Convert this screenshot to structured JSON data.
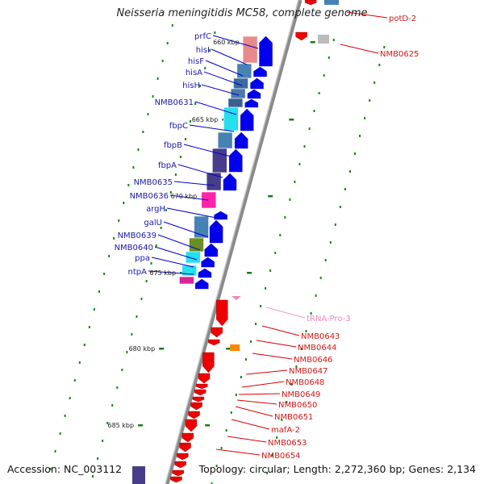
{
  "header": {
    "title": "Neisseria meningitidis MC58, complete genome"
  },
  "footer": {
    "accession": "Accession: NC_003112",
    "topology": "Topology: circular; Length: 2,272,360 bp; Genes: 2,134"
  },
  "colors": {
    "backbone": "#8c8c8c",
    "forward_genes": "#0000ee",
    "reverse_genes": "#ee0000",
    "forward_labels": "#1a1aa8",
    "reverse_labels": "#d01818",
    "trna": "#ee88bb",
    "tick_marks": "#118811"
  },
  "ruler": {
    "ticks": [
      {
        "label": "660 kbp"
      },
      {
        "label": "665 kbp"
      },
      {
        "label": "670 kbp"
      },
      {
        "label": "675 kbp"
      },
      {
        "label": "680 kbp"
      },
      {
        "label": "685 kbp"
      }
    ]
  },
  "genes_forward": [
    {
      "name": "prfC"
    },
    {
      "name": "hisI"
    },
    {
      "name": "hisF"
    },
    {
      "name": "hisA"
    },
    {
      "name": "hisH"
    },
    {
      "name": "NMB0631"
    },
    {
      "name": "fbpC"
    },
    {
      "name": "fbpB"
    },
    {
      "name": "fbpA"
    },
    {
      "name": "NMB0635"
    },
    {
      "name": "NMB0636"
    },
    {
      "name": "argH"
    },
    {
      "name": "galU"
    },
    {
      "name": "NMB0639"
    },
    {
      "name": "NMB0640"
    },
    {
      "name": "ppa"
    },
    {
      "name": "ntpA"
    }
  ],
  "genes_reverse": [
    {
      "name": "potD-2"
    },
    {
      "name": "NMB0625"
    },
    {
      "name": "tRNA-Pro-3"
    },
    {
      "name": "NMB0643"
    },
    {
      "name": "NMB0644"
    },
    {
      "name": "NMB0646"
    },
    {
      "name": "NMB0647"
    },
    {
      "name": "NMB0648"
    },
    {
      "name": "NMB0649"
    },
    {
      "name": "NMB0650"
    },
    {
      "name": "NMB0651"
    },
    {
      "name": "mafA-2"
    },
    {
      "name": "NMB0653"
    },
    {
      "name": "NMB0654"
    }
  ]
}
